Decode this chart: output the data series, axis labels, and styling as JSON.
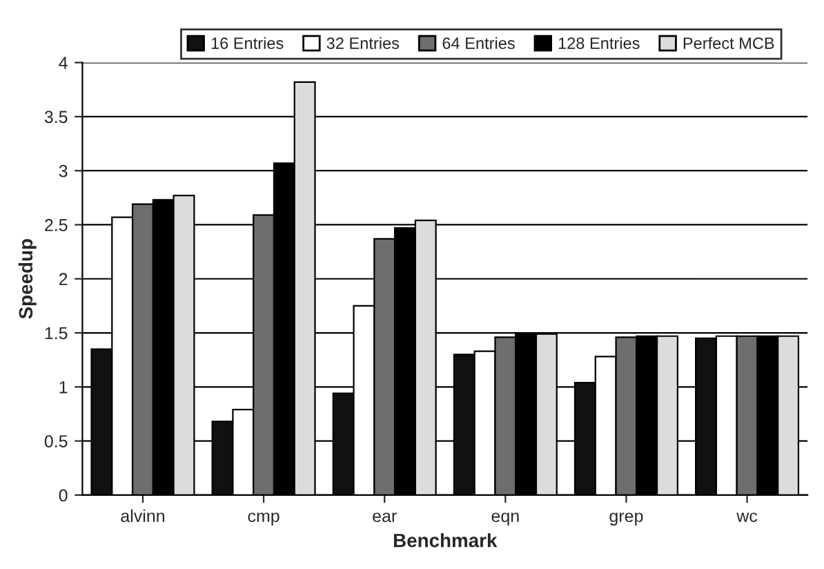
{
  "chart_data": {
    "type": "bar",
    "xlabel": "Benchmark",
    "ylabel": "Speedup",
    "categories": [
      "alvinn",
      "cmp",
      "ear",
      "eqn",
      "grep",
      "wc"
    ],
    "series": [
      {
        "name": "16 Entries",
        "color": "#111111",
        "values": [
          1.35,
          0.68,
          0.94,
          1.3,
          1.04,
          1.45
        ]
      },
      {
        "name": "32 Entries",
        "color": "#ffffff",
        "values": [
          2.57,
          0.79,
          1.75,
          1.33,
          1.28,
          1.47
        ]
      },
      {
        "name": "64 Entries",
        "color": "#6e6e6e",
        "values": [
          2.69,
          2.59,
          2.37,
          1.46,
          1.46,
          1.47
        ]
      },
      {
        "name": "128 Entries",
        "color": "#000000",
        "values": [
          2.73,
          3.07,
          2.47,
          1.49,
          1.47,
          1.47
        ]
      },
      {
        "name": "Perfect MCB",
        "color": "#dcdcdc",
        "values": [
          2.77,
          3.82,
          2.54,
          1.49,
          1.47,
          1.47
        ]
      }
    ],
    "ylim": [
      0,
      4
    ],
    "yticks": [
      0,
      0.5,
      1,
      1.5,
      2,
      2.5,
      3,
      3.5,
      4
    ],
    "grid": "y",
    "legend": "top"
  }
}
